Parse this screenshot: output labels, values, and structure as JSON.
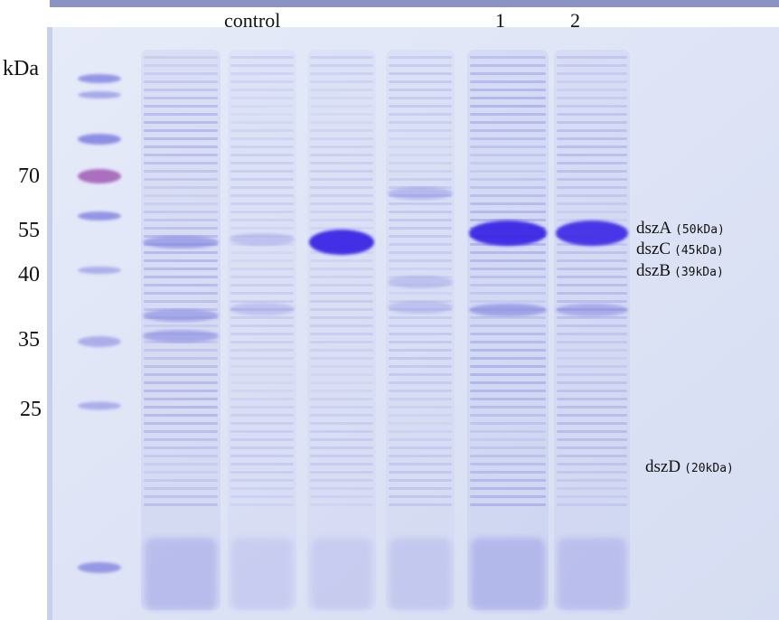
{
  "figure": {
    "lane_labels": {
      "control": "control",
      "lane_1": "1",
      "lane_2": "2"
    },
    "mw_unit": "kDa",
    "mw_markers": [
      "70",
      "55",
      "40",
      "35",
      "25"
    ],
    "bands": [
      {
        "name": "dszA",
        "size": "(50kDa)"
      },
      {
        "name": "dszC",
        "size": "(45kDa)"
      },
      {
        "name": "dszB",
        "size": "(39kDa)"
      },
      {
        "name": "dszD",
        "size": "(20kDa)"
      }
    ],
    "colors": {
      "gel_background": "#dfe4f5",
      "stain_faint": "#aab2e6",
      "stain_medium": "#7f7fe0",
      "stain_strong": "#3a25e6",
      "marker_red": "#a05ab4",
      "text": "#111111"
    }
  }
}
